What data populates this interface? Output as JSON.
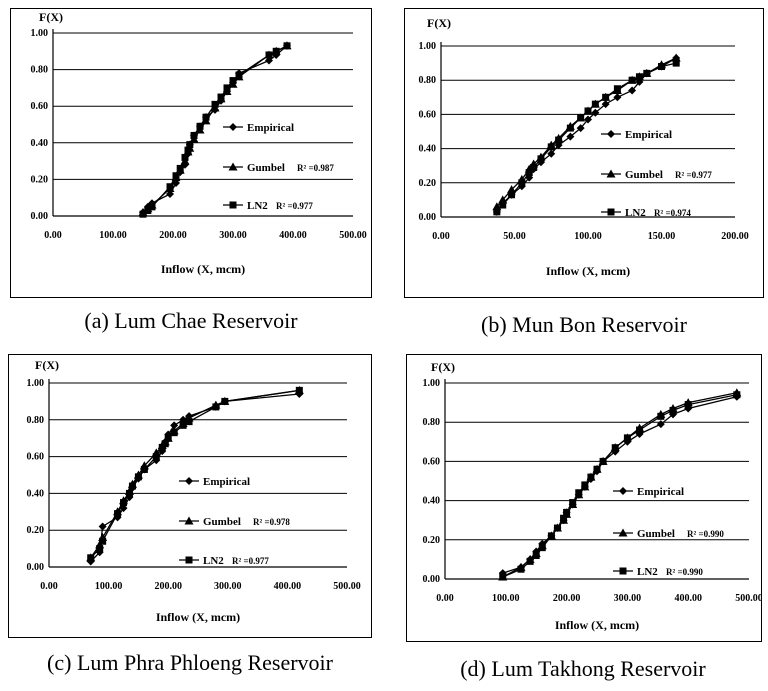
{
  "chart_data": [
    {
      "type": "line",
      "caption": "(a) Lum Chae Reservoir",
      "ylabel": "F(X)",
      "xlabel": "Inflow (X, mcm)",
      "xlim": [
        0,
        500
      ],
      "ylim": [
        0,
        1
      ],
      "xticks": [
        "0.00",
        "100.00",
        "200.00",
        "300.00",
        "400.00",
        "500.00"
      ],
      "yticks": [
        "0.00",
        "0.20",
        "0.40",
        "0.60",
        "0.80",
        "1.00"
      ],
      "grid": "horizontal",
      "legend_position": "right",
      "series": [
        {
          "name": "Empirical",
          "marker": "diamond",
          "x": [
            150,
            158,
            165,
            195,
            205,
            212,
            220,
            225,
            228,
            235,
            245,
            255,
            270,
            280,
            290,
            300,
            310,
            360,
            372,
            390
          ],
          "y": [
            0.02,
            0.05,
            0.07,
            0.12,
            0.18,
            0.24,
            0.28,
            0.34,
            0.39,
            0.44,
            0.49,
            0.54,
            0.58,
            0.63,
            0.68,
            0.73,
            0.78,
            0.85,
            0.88,
            0.93
          ]
        },
        {
          "name": "Gumbel",
          "r2": "R² =0.987",
          "marker": "triangle",
          "x": [
            150,
            158,
            165,
            195,
            205,
            212,
            220,
            225,
            228,
            235,
            245,
            255,
            270,
            280,
            290,
            300,
            310,
            360,
            372,
            390
          ],
          "y": [
            0.02,
            0.04,
            0.06,
            0.15,
            0.21,
            0.25,
            0.3,
            0.35,
            0.37,
            0.42,
            0.47,
            0.52,
            0.59,
            0.64,
            0.68,
            0.72,
            0.76,
            0.88,
            0.9,
            0.93
          ]
        },
        {
          "name": "LN2",
          "r2": "R² =0.977",
          "marker": "square",
          "x": [
            150,
            158,
            165,
            195,
            205,
            212,
            220,
            225,
            228,
            235,
            245,
            255,
            270,
            280,
            290,
            300,
            310,
            360,
            372,
            390
          ],
          "y": [
            0.01,
            0.03,
            0.05,
            0.16,
            0.22,
            0.26,
            0.32,
            0.36,
            0.39,
            0.44,
            0.49,
            0.54,
            0.61,
            0.65,
            0.7,
            0.74,
            0.77,
            0.88,
            0.9,
            0.93
          ]
        }
      ]
    },
    {
      "type": "line",
      "caption": "(b) Mun Bon Reservoir",
      "ylabel": "F(X)",
      "xlabel": "Inflow (X, mcm)",
      "xlim": [
        0,
        200
      ],
      "ylim": [
        0,
        1
      ],
      "xticks": [
        "0.00",
        "50.00",
        "100.00",
        "150.00",
        "200.00"
      ],
      "yticks": [
        "0.00",
        "0.20",
        "0.40",
        "0.60",
        "0.80",
        "1.00"
      ],
      "grid": "horizontal",
      "legend_position": "right",
      "series": [
        {
          "name": "Empirical",
          "marker": "diamond",
          "x": [
            38,
            42,
            48,
            55,
            60,
            63,
            68,
            75,
            80,
            88,
            95,
            100,
            105,
            112,
            120,
            130,
            135,
            140,
            150,
            160
          ],
          "y": [
            0.03,
            0.08,
            0.13,
            0.18,
            0.23,
            0.28,
            0.32,
            0.37,
            0.42,
            0.47,
            0.52,
            0.57,
            0.61,
            0.66,
            0.7,
            0.74,
            0.79,
            0.84,
            0.88,
            0.93
          ]
        },
        {
          "name": "Gumbel",
          "r2": "R² =0.977",
          "marker": "triangle",
          "x": [
            38,
            42,
            48,
            55,
            60,
            63,
            68,
            75,
            80,
            88,
            95,
            100,
            105,
            112,
            120,
            130,
            135,
            140,
            150,
            160
          ],
          "y": [
            0.06,
            0.1,
            0.16,
            0.22,
            0.28,
            0.31,
            0.35,
            0.42,
            0.46,
            0.53,
            0.58,
            0.62,
            0.66,
            0.7,
            0.74,
            0.8,
            0.82,
            0.84,
            0.89,
            0.93
          ]
        },
        {
          "name": "LN2",
          "r2": "R² =0.974",
          "marker": "square",
          "x": [
            38,
            42,
            48,
            55,
            60,
            63,
            68,
            75,
            80,
            88,
            95,
            100,
            105,
            112,
            120,
            130,
            135,
            140,
            150,
            160
          ],
          "y": [
            0.03,
            0.07,
            0.13,
            0.2,
            0.26,
            0.29,
            0.34,
            0.41,
            0.45,
            0.52,
            0.58,
            0.62,
            0.66,
            0.7,
            0.75,
            0.8,
            0.82,
            0.84,
            0.88,
            0.9
          ]
        }
      ]
    },
    {
      "type": "line",
      "caption": "(c) Lum Phra Phloeng Reservoir",
      "ylabel": "F(X)",
      "xlabel": "Inflow (X, mcm)",
      "xlim": [
        0,
        500
      ],
      "ylim": [
        0,
        1
      ],
      "xticks": [
        "0.00",
        "100.00",
        "200.00",
        "300.00",
        "400.00",
        "500.00"
      ],
      "yticks": [
        "0.00",
        "0.20",
        "0.40",
        "0.60",
        "0.80",
        "1.00"
      ],
      "grid": "horizontal",
      "legend_position": "right",
      "series": [
        {
          "name": "Empirical",
          "marker": "diamond",
          "x": [
            70,
            85,
            90,
            115,
            125,
            135,
            140,
            150,
            160,
            180,
            190,
            195,
            200,
            210,
            225,
            235,
            280,
            295,
            420
          ],
          "y": [
            0.03,
            0.08,
            0.22,
            0.27,
            0.32,
            0.38,
            0.43,
            0.48,
            0.53,
            0.58,
            0.63,
            0.68,
            0.72,
            0.77,
            0.8,
            0.82,
            0.87,
            0.9,
            0.94
          ]
        },
        {
          "name": "Gumbel",
          "r2": "R² =0.978",
          "marker": "triangle",
          "x": [
            70,
            85,
            90,
            115,
            125,
            135,
            140,
            150,
            160,
            180,
            190,
            195,
            200,
            210,
            225,
            235,
            280,
            295,
            420
          ],
          "y": [
            0.05,
            0.12,
            0.16,
            0.3,
            0.36,
            0.41,
            0.45,
            0.5,
            0.55,
            0.62,
            0.66,
            0.68,
            0.7,
            0.74,
            0.78,
            0.81,
            0.88,
            0.9,
            0.96
          ]
        },
        {
          "name": "LN2",
          "r2": "R² =0.977",
          "marker": "square",
          "x": [
            70,
            85,
            90,
            115,
            125,
            135,
            140,
            150,
            160,
            180,
            190,
            195,
            200,
            210,
            225,
            235,
            280,
            295,
            420
          ],
          "y": [
            0.05,
            0.1,
            0.14,
            0.29,
            0.35,
            0.4,
            0.44,
            0.49,
            0.53,
            0.6,
            0.65,
            0.67,
            0.7,
            0.73,
            0.77,
            0.79,
            0.87,
            0.9,
            0.96
          ]
        }
      ]
    },
    {
      "type": "line",
      "caption": "(d) Lum Takhong Reservoir",
      "ylabel": "F(X)",
      "xlabel": "Inflow (X, mcm)",
      "xlim": [
        0,
        500
      ],
      "ylim": [
        0,
        1
      ],
      "xticks": [
        "0.00",
        "100.00",
        "200.00",
        "300.00",
        "400.00",
        "500.00"
      ],
      "yticks": [
        "0.00",
        "0.20",
        "0.40",
        "0.60",
        "0.80",
        "1.00"
      ],
      "grid": "horizontal",
      "legend_position": "right",
      "series": [
        {
          "name": "Empirical",
          "marker": "diamond",
          "x": [
            95,
            125,
            140,
            150,
            160,
            175,
            185,
            195,
            200,
            210,
            220,
            230,
            240,
            250,
            260,
            280,
            300,
            320,
            355,
            375,
            400,
            480
          ],
          "y": [
            0.03,
            0.06,
            0.1,
            0.14,
            0.18,
            0.22,
            0.26,
            0.3,
            0.34,
            0.38,
            0.43,
            0.47,
            0.51,
            0.55,
            0.6,
            0.65,
            0.7,
            0.74,
            0.79,
            0.84,
            0.87,
            0.93
          ]
        },
        {
          "name": "Gumbel",
          "r2": "R² =0.990",
          "marker": "triangle",
          "x": [
            95,
            125,
            140,
            150,
            160,
            175,
            185,
            195,
            200,
            210,
            220,
            230,
            240,
            250,
            260,
            280,
            300,
            320,
            355,
            375,
            400,
            480
          ],
          "y": [
            0.01,
            0.06,
            0.1,
            0.13,
            0.17,
            0.22,
            0.26,
            0.3,
            0.33,
            0.38,
            0.43,
            0.47,
            0.52,
            0.56,
            0.6,
            0.67,
            0.72,
            0.77,
            0.84,
            0.87,
            0.9,
            0.95
          ]
        },
        {
          "name": "LN2",
          "r2": "R² =0.990",
          "marker": "square",
          "x": [
            95,
            125,
            140,
            150,
            160,
            175,
            185,
            195,
            200,
            210,
            220,
            230,
            240,
            250,
            260,
            280,
            300,
            320,
            355,
            375,
            400,
            480
          ],
          "y": [
            0.01,
            0.05,
            0.09,
            0.12,
            0.16,
            0.22,
            0.26,
            0.31,
            0.34,
            0.39,
            0.44,
            0.48,
            0.52,
            0.56,
            0.6,
            0.67,
            0.72,
            0.76,
            0.83,
            0.86,
            0.89,
            0.94
          ]
        }
      ]
    }
  ]
}
